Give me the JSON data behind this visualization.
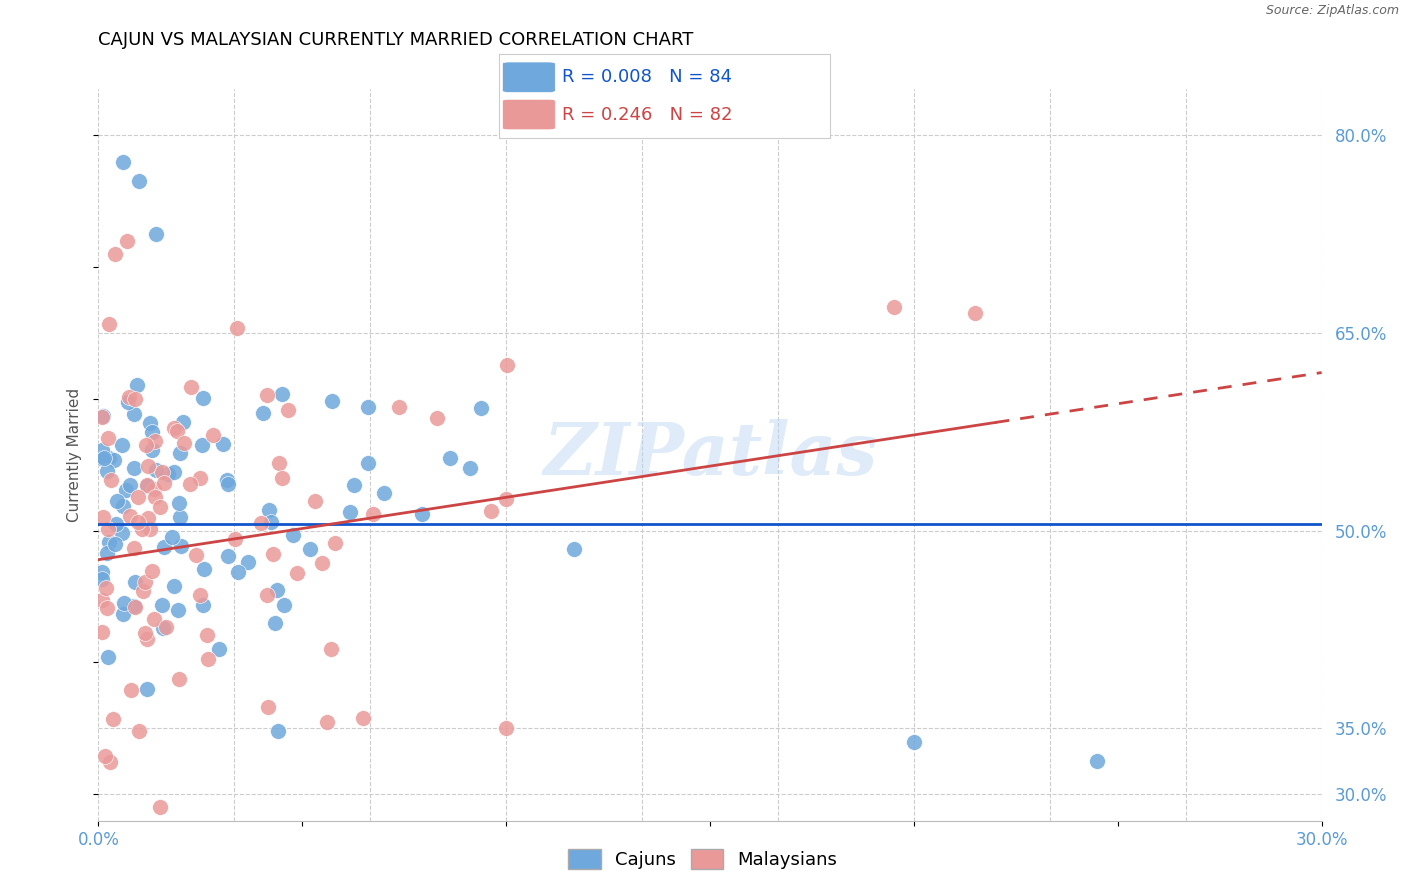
{
  "title": "CAJUN VS MALAYSIAN CURRENTLY MARRIED CORRELATION CHART",
  "source": "Source: ZipAtlas.com",
  "ylabel": "Currently Married",
  "yticks": [
    0.3,
    0.35,
    0.5,
    0.65,
    0.8
  ],
  "xmin": 0.0,
  "xmax": 0.3,
  "ymin": 0.28,
  "ymax": 0.835,
  "cajun_R": "0.008",
  "cajun_N": "84",
  "malaysian_R": "0.246",
  "malaysian_N": "82",
  "cajun_color": "#6fa8dc",
  "malaysian_color": "#ea9999",
  "cajun_line_color": "#1155cc",
  "malaysian_line_color": "#cc4444",
  "watermark": "ZIPatlas",
  "legend_label1": "Cajuns",
  "legend_label2": "Malaysians",
  "background_color": "#ffffff",
  "grid_color": "#cccccc",
  "tick_color": "#5b9bd5",
  "title_color": "#000000",
  "title_fontsize": 13,
  "axis_label_fontsize": 11,
  "tick_fontsize": 12,
  "legend_fontsize": 13
}
